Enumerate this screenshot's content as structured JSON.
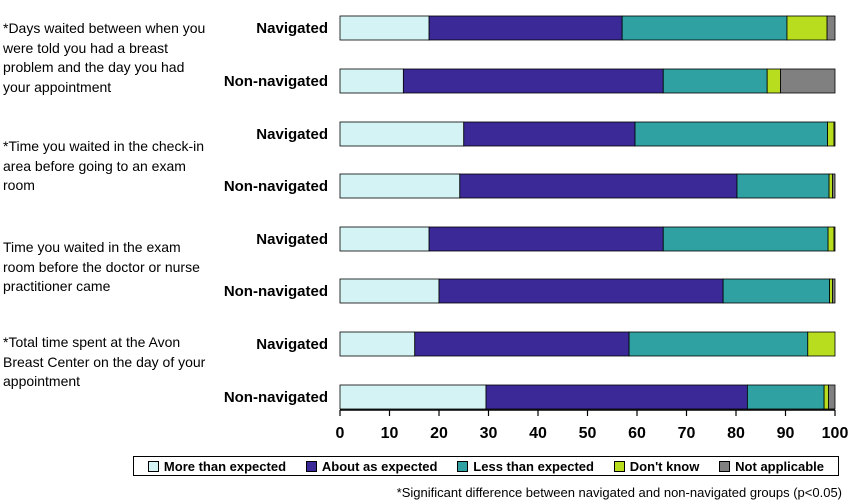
{
  "question_labels": [
    "*Days waited between when you were told you had a breast problem and the day you had your appointment",
    "*Time you waited in the check-in area before going to an exam room",
    "Time you waited in the exam room before the doctor or nurse practitioner came",
    "*Total time spent at the Avon Breast Center on the day of your appointment"
  ],
  "footnote": "*Significant difference between navigated and non-navigated groups (p<0.05)",
  "chart_data": {
    "type": "bar",
    "orientation": "horizontal",
    "stacked": true,
    "xlim": [
      0,
      100
    ],
    "xticks": [
      "0",
      "10",
      "20",
      "30",
      "40",
      "50",
      "60",
      "70",
      "80",
      "90",
      "100"
    ],
    "grid": false,
    "legend_position": "bottom",
    "categories": [
      "Navigated",
      "Non-navigated",
      "Navigated",
      "Non-navigated",
      "Navigated",
      "Non-navigated",
      "Navigated",
      "Non-navigated"
    ],
    "series": [
      {
        "name": "More than expected",
        "color": "#d4f3f4",
        "values": [
          18,
          12.8,
          25,
          24.2,
          18,
          20,
          15.1,
          29.5
        ]
      },
      {
        "name": "About as expected",
        "color": "#3a2997",
        "values": [
          39,
          52.5,
          34.6,
          56,
          47.3,
          57.4,
          43.3,
          52.8
        ]
      },
      {
        "name": "Less than expected",
        "color": "#2fa1a2",
        "values": [
          33.3,
          21,
          38.9,
          18.6,
          33.3,
          21.5,
          36.1,
          15.5
        ]
      },
      {
        "name": "Don't know",
        "color": "#b8dc1e",
        "values": [
          8.1,
          2.7,
          1.3,
          0.7,
          1.2,
          0.6,
          5.5,
          0.9
        ]
      },
      {
        "name": "Not applicable",
        "color": "#808080",
        "values": [
          1.6,
          11,
          0.2,
          0.5,
          0.2,
          0.5,
          0,
          1.3
        ]
      }
    ]
  }
}
